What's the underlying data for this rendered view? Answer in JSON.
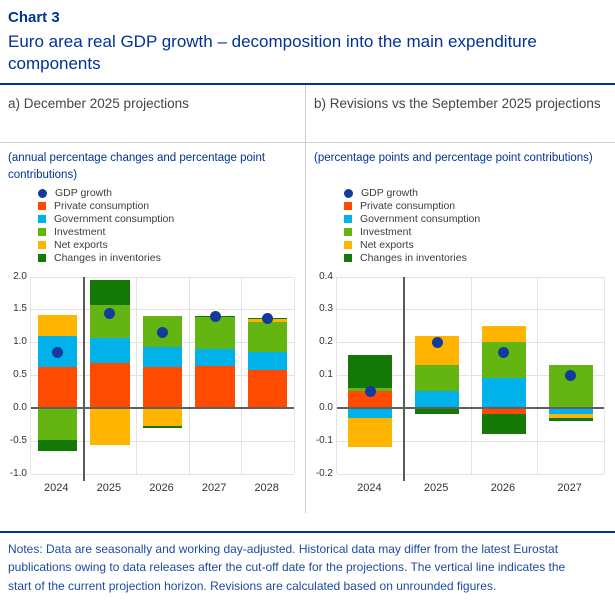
{
  "header": {
    "chart_label": "Chart 3",
    "title": "Euro area real GDP growth – decomposition into the main expenditure components"
  },
  "colors": {
    "gdp": "#123C9B",
    "private_consumption": "#FF4B00",
    "government_consumption": "#00B1EA",
    "investment": "#65B512",
    "net_exports": "#FFB400",
    "inventories": "#147806"
  },
  "legend": {
    "items": [
      {
        "key": "gdp",
        "label": "GDP growth",
        "shape": "circle"
      },
      {
        "key": "private_consumption",
        "label": "Private consumption",
        "shape": "square"
      },
      {
        "key": "government_consumption",
        "label": "Government consumption",
        "shape": "square"
      },
      {
        "key": "investment",
        "label": "Investment",
        "shape": "square"
      },
      {
        "key": "net_exports",
        "label": "Net exports",
        "shape": "square"
      },
      {
        "key": "inventories",
        "label": "Changes in inventories",
        "shape": "square"
      }
    ]
  },
  "chart_data": [
    {
      "type": "bar",
      "title": "a) December 2025 projections",
      "subtitle": "(annual percentage changes and percentage point contributions)",
      "ylim": [
        -1.0,
        2.0
      ],
      "ytick_step": 0.5,
      "ytick_labels": [
        "2.0",
        "1.5",
        "1.0",
        "0.5",
        "0.0",
        "-0.5",
        "-1.0"
      ],
      "grid": true,
      "projection_line_after_index": 0,
      "categories": [
        "2024",
        "2025",
        "2026",
        "2027",
        "2028"
      ],
      "series": [
        {
          "name": "Private consumption",
          "key": "private_consumption",
          "values": [
            0.62,
            0.68,
            0.62,
            0.64,
            0.58
          ]
        },
        {
          "name": "Government consumption",
          "key": "government_consumption",
          "values": [
            0.47,
            0.38,
            0.31,
            0.25,
            0.27
          ]
        },
        {
          "name": "Investment",
          "key": "investment",
          "values": [
            -0.49,
            0.51,
            0.47,
            0.49,
            0.45
          ]
        },
        {
          "name": "Net exports",
          "key": "net_exports",
          "values": [
            0.33,
            -0.57,
            -0.28,
            0.0,
            0.05
          ]
        },
        {
          "name": "Changes in inventories",
          "key": "inventories",
          "values": [
            -0.16,
            0.37,
            -0.03,
            0.02,
            0.02
          ]
        }
      ],
      "gdp_growth": {
        "name": "GDP growth",
        "key": "gdp",
        "values": [
          0.85,
          1.43,
          1.15,
          1.39,
          1.36
        ]
      }
    },
    {
      "type": "bar",
      "title": "b) Revisions vs the September 2025 projections",
      "subtitle": "(percentage points and percentage point contributions)",
      "ylim": [
        -0.2,
        0.4
      ],
      "ytick_step": 0.1,
      "ytick_labels": [
        "0.4",
        "0.3",
        "0.2",
        "0.1",
        "0.0",
        "-0.1",
        "-0.2"
      ],
      "grid": true,
      "projection_line_after_index": 0,
      "categories": [
        "2024",
        "2025",
        "2026",
        "2027"
      ],
      "series": [
        {
          "name": "Private consumption",
          "key": "private_consumption",
          "values": [
            0.05,
            0.0,
            -0.02,
            0.0
          ]
        },
        {
          "name": "Government consumption",
          "key": "government_consumption",
          "values": [
            -0.03,
            0.05,
            0.09,
            -0.02
          ]
        },
        {
          "name": "Investment",
          "key": "investment",
          "values": [
            0.01,
            0.08,
            0.11,
            0.13
          ]
        },
        {
          "name": "Net exports",
          "key": "net_exports",
          "values": [
            -0.09,
            0.09,
            0.05,
            -0.01
          ]
        },
        {
          "name": "Changes in inventories",
          "key": "inventories",
          "values": [
            0.1,
            -0.02,
            -0.06,
            -0.01
          ]
        }
      ],
      "gdp_growth": {
        "name": "GDP growth",
        "key": "gdp",
        "values": [
          0.05,
          0.2,
          0.17,
          0.1
        ]
      }
    }
  ],
  "notes": "Notes: Data are seasonally and working day-adjusted. Historical data may differ from the latest Eurostat publications owing to data releases after the cut-off date for the projections. The vertical line indicates the start of the current projection horizon. Revisions are calculated based on unrounded figures."
}
